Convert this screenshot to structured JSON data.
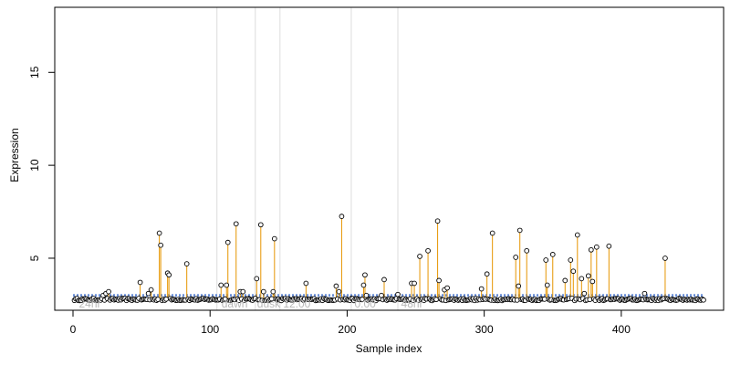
{
  "chart_data": {
    "type": "scatter",
    "title": "",
    "xlabel": "Sample index",
    "ylabel": "Expression",
    "xlim": [
      0,
      460
    ],
    "ylim": [
      2.2,
      18.5
    ],
    "x_ticks": [
      0,
      100,
      200,
      300,
      400
    ],
    "y_ticks": [
      5,
      10,
      15
    ],
    "grid": false,
    "colors": {
      "points": "#000000",
      "baseline": "#6b8fd6",
      "stems": "#e69500",
      "vlines": "#dcdcdc",
      "annotations": "#b8b8b8"
    },
    "baseline": 3.0,
    "vertical_lines": [
      105,
      133,
      151,
      203,
      237
    ],
    "annotations": [
      {
        "x": 3,
        "label": "24hr"
      },
      {
        "x": 107,
        "label": "dawn"
      },
      {
        "x": 133,
        "label": "dusk"
      },
      {
        "x": 152,
        "label": "12:00"
      },
      {
        "x": 204,
        "label": "0:00"
      },
      {
        "x": 238,
        "label": "48hr"
      }
    ],
    "peaks": [
      {
        "x": 22,
        "y": 3.0
      },
      {
        "x": 24,
        "y": 3.1
      },
      {
        "x": 26,
        "y": 3.2
      },
      {
        "x": 49,
        "y": 3.7
      },
      {
        "x": 55,
        "y": 3.1
      },
      {
        "x": 57,
        "y": 3.3
      },
      {
        "x": 63,
        "y": 6.35
      },
      {
        "x": 64,
        "y": 5.7
      },
      {
        "x": 69,
        "y": 4.2
      },
      {
        "x": 70,
        "y": 4.1
      },
      {
        "x": 83,
        "y": 4.7
      },
      {
        "x": 108,
        "y": 3.55
      },
      {
        "x": 112,
        "y": 3.55
      },
      {
        "x": 113,
        "y": 5.85
      },
      {
        "x": 119,
        "y": 6.85
      },
      {
        "x": 122,
        "y": 3.2
      },
      {
        "x": 124,
        "y": 3.2
      },
      {
        "x": 134,
        "y": 3.9
      },
      {
        "x": 137,
        "y": 6.8
      },
      {
        "x": 139,
        "y": 3.2
      },
      {
        "x": 146,
        "y": 3.2
      },
      {
        "x": 147,
        "y": 6.05
      },
      {
        "x": 170,
        "y": 3.65
      },
      {
        "x": 192,
        "y": 3.5
      },
      {
        "x": 194,
        "y": 3.2
      },
      {
        "x": 196,
        "y": 7.25
      },
      {
        "x": 212,
        "y": 3.55
      },
      {
        "x": 213,
        "y": 4.1
      },
      {
        "x": 214,
        "y": 3.0
      },
      {
        "x": 225,
        "y": 3.0
      },
      {
        "x": 227,
        "y": 3.85
      },
      {
        "x": 237,
        "y": 3.05
      },
      {
        "x": 247,
        "y": 3.65
      },
      {
        "x": 249,
        "y": 3.65
      },
      {
        "x": 253,
        "y": 5.1
      },
      {
        "x": 259,
        "y": 5.4
      },
      {
        "x": 266,
        "y": 7.0
      },
      {
        "x": 267,
        "y": 3.8
      },
      {
        "x": 271,
        "y": 3.3
      },
      {
        "x": 273,
        "y": 3.4
      },
      {
        "x": 298,
        "y": 3.35
      },
      {
        "x": 302,
        "y": 4.15
      },
      {
        "x": 306,
        "y": 6.35
      },
      {
        "x": 323,
        "y": 5.05
      },
      {
        "x": 325,
        "y": 3.5
      },
      {
        "x": 326,
        "y": 6.5
      },
      {
        "x": 331,
        "y": 5.4
      },
      {
        "x": 345,
        "y": 4.9
      },
      {
        "x": 346,
        "y": 3.55
      },
      {
        "x": 350,
        "y": 5.2
      },
      {
        "x": 359,
        "y": 3.8
      },
      {
        "x": 363,
        "y": 4.9
      },
      {
        "x": 365,
        "y": 4.3
      },
      {
        "x": 368,
        "y": 6.25
      },
      {
        "x": 371,
        "y": 3.9
      },
      {
        "x": 373,
        "y": 3.1
      },
      {
        "x": 376,
        "y": 4.05
      },
      {
        "x": 378,
        "y": 5.45
      },
      {
        "x": 379,
        "y": 3.75
      },
      {
        "x": 382,
        "y": 5.6
      },
      {
        "x": 391,
        "y": 5.65
      },
      {
        "x": 417,
        "y": 3.1
      },
      {
        "x": 432,
        "y": 5.0
      }
    ]
  }
}
